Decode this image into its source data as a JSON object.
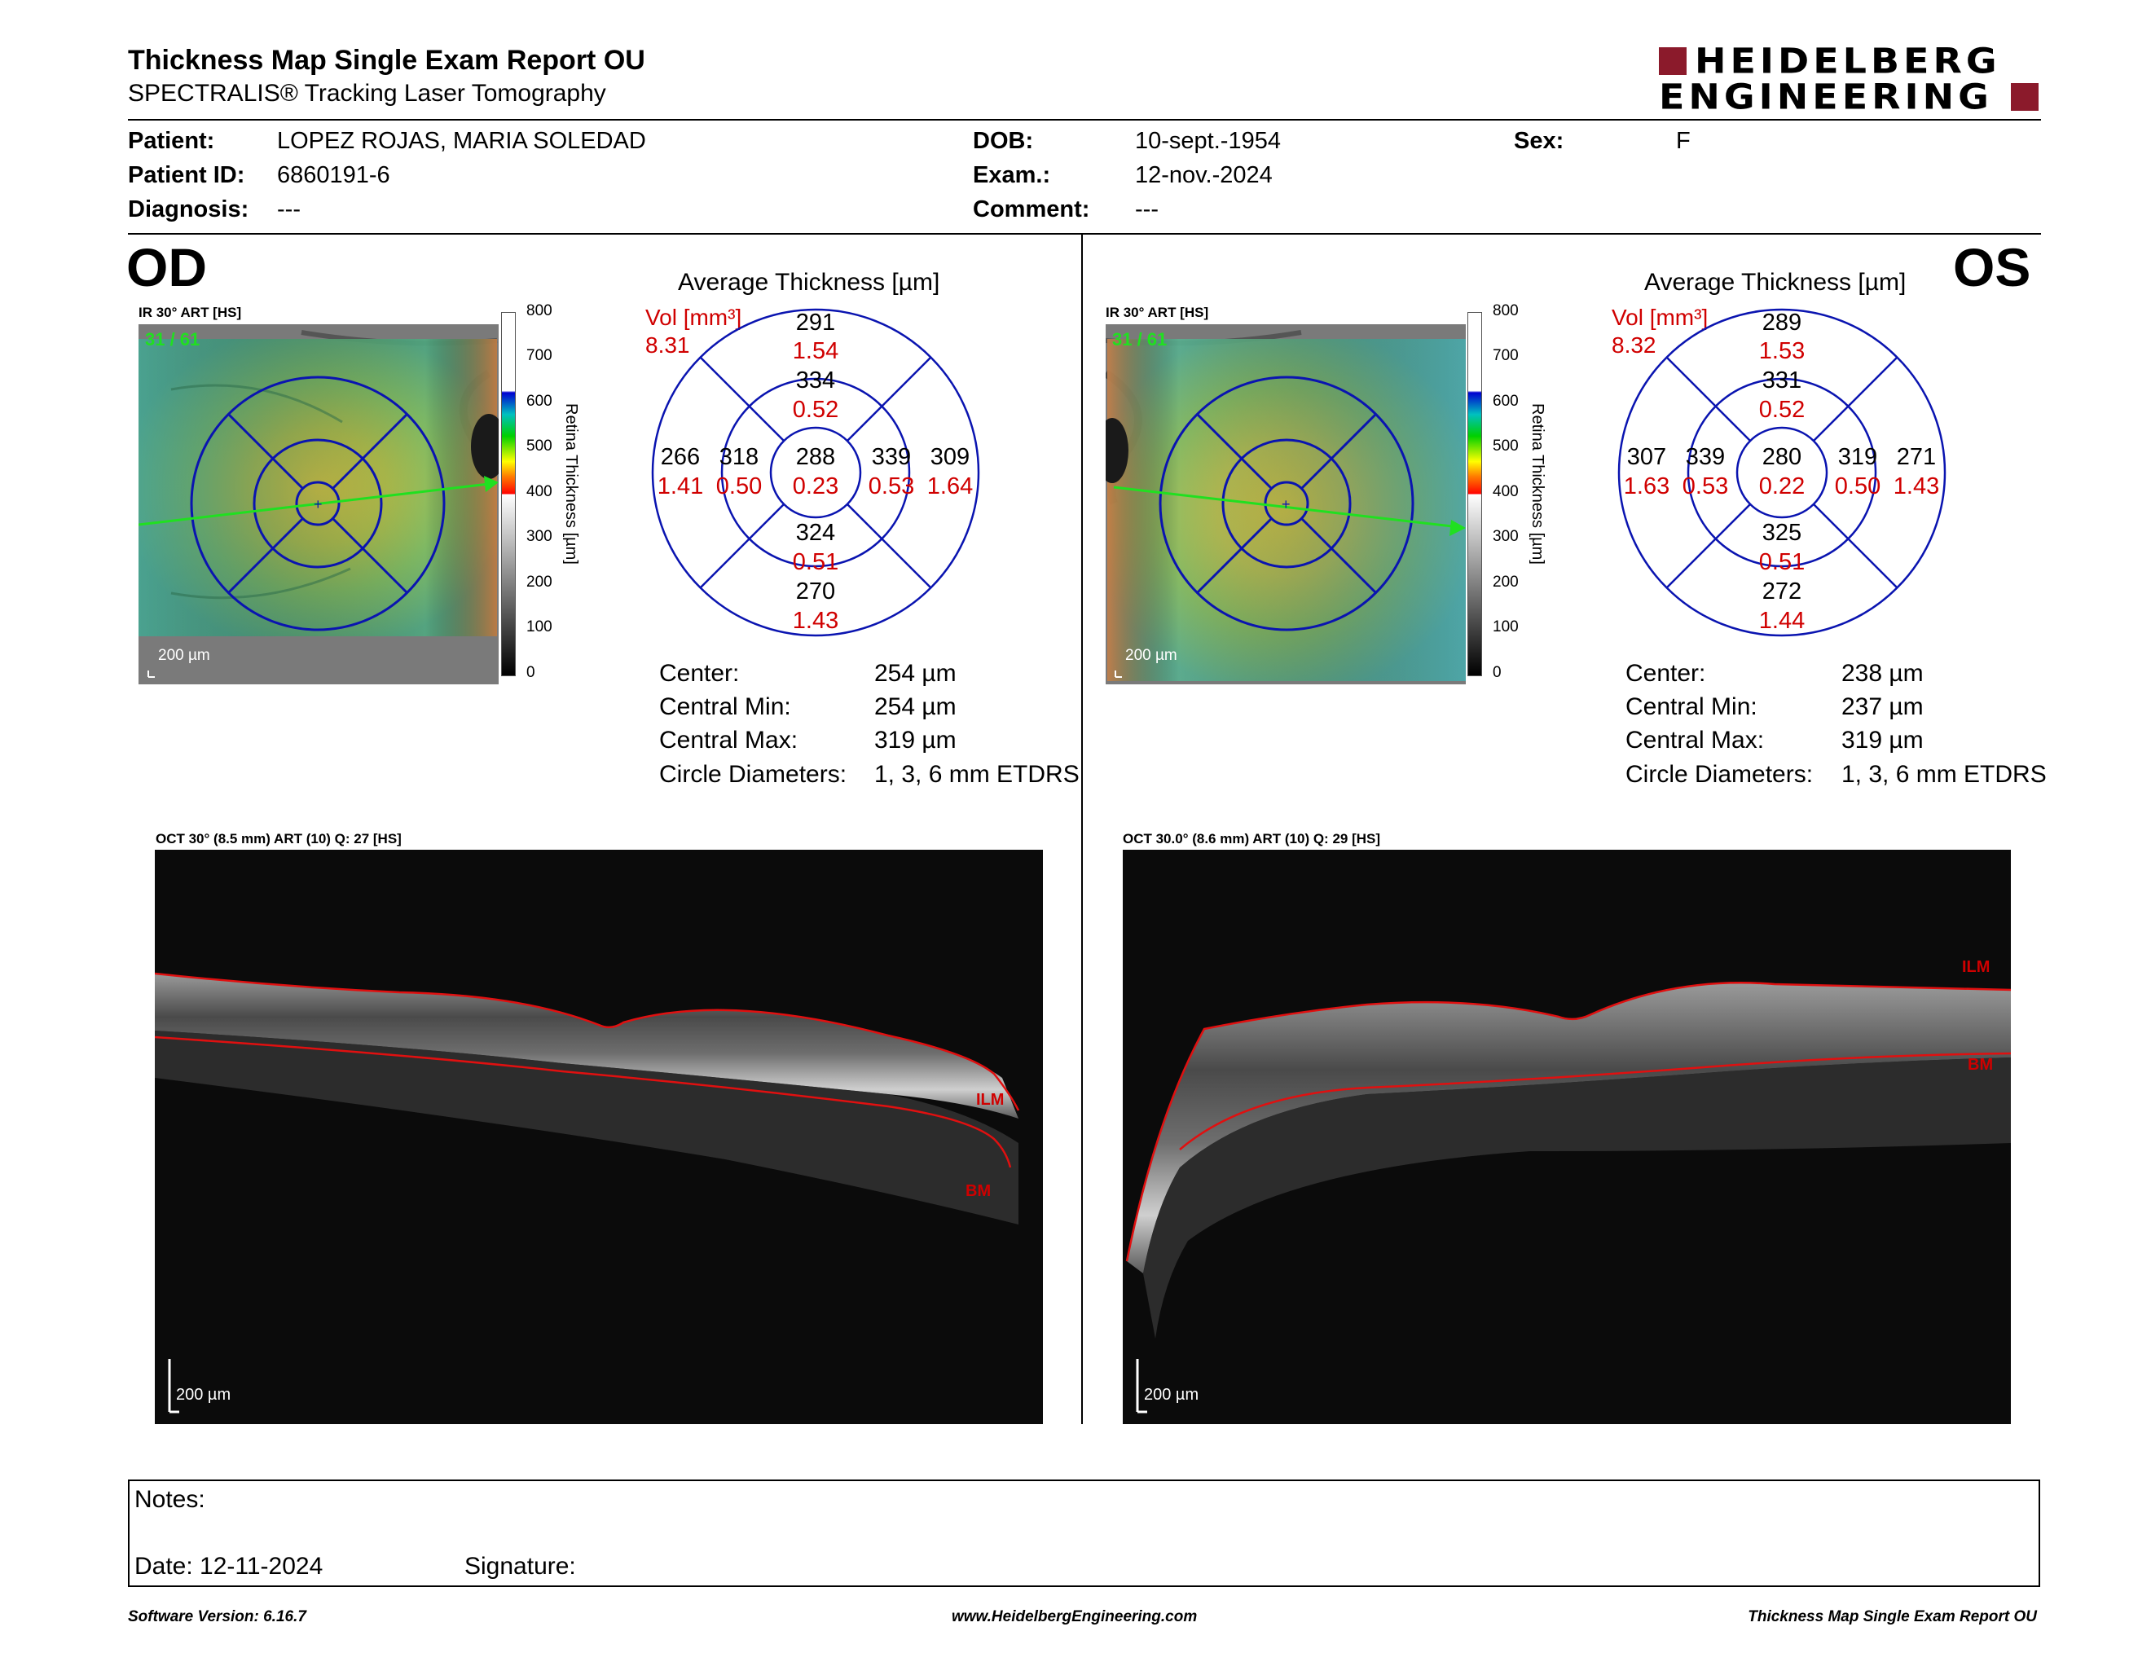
{
  "report": {
    "title": "Thickness Map Single Exam Report OU",
    "subtitle": "SPECTRALIS® Tracking Laser Tomography",
    "logo_line1": "HEIDELBERG",
    "logo_line2": "ENGINEERING",
    "brand_color": "#8b1a2b"
  },
  "patient": {
    "patient_label": "Patient:",
    "patient_value": "LOPEZ ROJAS, MARIA SOLEDAD",
    "id_label": "Patient ID:",
    "id_value": "6860191-6",
    "diagnosis_label": "Diagnosis:",
    "diagnosis_value": "---",
    "dob_label": "DOB:",
    "dob_value": "10-sept.-1954",
    "exam_label": "Exam.:",
    "exam_value": "12-nov.-2024",
    "comment_label": "Comment:",
    "comment_value": "---",
    "sex_label": "Sex:",
    "sex_value": "F"
  },
  "colorbar": {
    "ticks": [
      "800",
      "700",
      "600",
      "500",
      "400",
      "300",
      "200",
      "100",
      "0"
    ],
    "title": "Retina Thickness [µm]"
  },
  "od": {
    "eye": "OD",
    "slo_label": "IR 30° ART [HS]",
    "scan_count": "31 / 61",
    "scale": "200 µm",
    "avg_title": "Average Thickness [µm]",
    "vol_label": "Vol [mm³]",
    "vol_value": "8.31",
    "sup_outer": "291",
    "sup_outer_vol": "1.54",
    "sup_inner": "334",
    "sup_inner_vol": "0.52",
    "temp_outer": "266",
    "temp_outer_vol": "1.41",
    "temp_inner": "318",
    "temp_inner_vol": "0.50",
    "center": "288",
    "center_vol": "0.23",
    "nas_inner": "339",
    "nas_inner_vol": "0.53",
    "nas_outer": "309",
    "nas_outer_vol": "1.64",
    "inf_inner": "324",
    "inf_inner_vol": "0.51",
    "inf_outer": "270",
    "inf_outer_vol": "1.43",
    "center_label": "Center:",
    "center_val": "254 µm",
    "cmin_label": "Central Min:",
    "cmin_val": "254 µm",
    "cmax_label": "Central Max:",
    "cmax_val": "319 µm",
    "diam_label": "Circle Diameters:",
    "diam_val": "1, 3, 6 mm ETDRS",
    "oct_label": "OCT 30° (8.5 mm) ART (10) Q: 27 [HS]",
    "ilm": "ILM",
    "bm": "BM",
    "oct_scale": "200 µm"
  },
  "os": {
    "eye": "OS",
    "slo_label": "IR 30° ART [HS]",
    "scan_count": "31 / 61",
    "scale": "200 µm",
    "avg_title": "Average Thickness [µm]",
    "vol_label": "Vol [mm³]",
    "vol_value": "8.32",
    "sup_outer": "289",
    "sup_outer_vol": "1.53",
    "sup_inner": "331",
    "sup_inner_vol": "0.52",
    "temp_outer": "307",
    "temp_outer_vol": "1.63",
    "temp_inner": "339",
    "temp_inner_vol": "0.53",
    "center": "280",
    "center_vol": "0.22",
    "nas_inner": "319",
    "nas_inner_vol": "0.50",
    "nas_outer": "271",
    "nas_outer_vol": "1.43",
    "inf_inner": "325",
    "inf_inner_vol": "0.51",
    "inf_outer": "272",
    "inf_outer_vol": "1.44",
    "center_label": "Center:",
    "center_val": "238 µm",
    "cmin_label": "Central Min:",
    "cmin_val": "237 µm",
    "cmax_label": "Central Max:",
    "cmax_val": "319 µm",
    "diam_label": "Circle Diameters:",
    "diam_val": "1, 3, 6 mm ETDRS",
    "oct_label": "OCT 30.0° (8.6 mm) ART (10) Q: 29 [HS]",
    "ilm": "ILM",
    "bm": "BM",
    "oct_scale": "200 µm"
  },
  "notes": {
    "notes_label": "Notes:",
    "date_label": "Date: 12-11-2024",
    "signature_label": "Signature:"
  },
  "footer": {
    "software": "Software Version: 6.16.7",
    "website": "www.HeidelbergEngineering.com",
    "report_name": "Thickness Map Single Exam Report OU"
  }
}
